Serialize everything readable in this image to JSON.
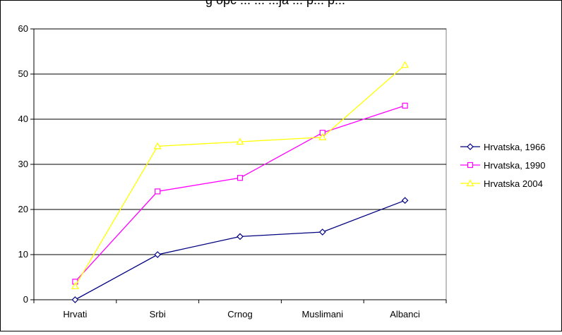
{
  "chart_data": {
    "type": "line",
    "title": "g opc ... ... ...ja ... p... p...",
    "categories": [
      "Hrvati",
      "Srbi",
      "Crnog",
      "Muslimani",
      "Albanci"
    ],
    "ylim": [
      0,
      60
    ],
    "yticks": [
      0,
      10,
      20,
      30,
      40,
      50,
      60
    ],
    "grid": true,
    "legend_position": "right",
    "series": [
      {
        "name": "Hrvatska, 1966",
        "color": "#000080",
        "marker": "diamond",
        "values": [
          0,
          10,
          14,
          15,
          22
        ]
      },
      {
        "name": "Hrvatska, 1990",
        "color": "#ff00ff",
        "marker": "square",
        "values": [
          4,
          24,
          27,
          37,
          43
        ]
      },
      {
        "name": "Hrvatska 2004",
        "color": "#ffff00",
        "marker": "triangle",
        "values": [
          3,
          34,
          35,
          36,
          52
        ]
      }
    ]
  }
}
